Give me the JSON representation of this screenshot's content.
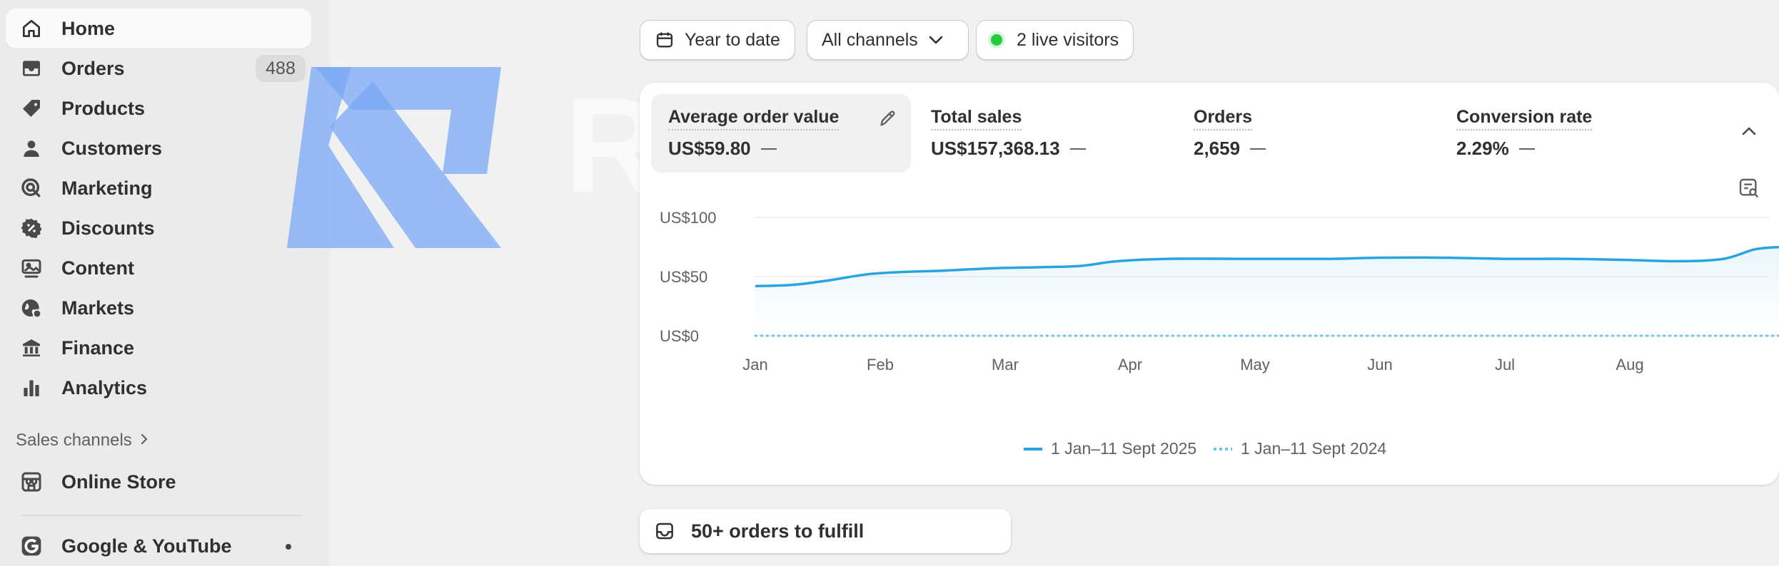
{
  "sidebar": {
    "items": [
      {
        "label": "Home",
        "icon": "home-icon",
        "active": true
      },
      {
        "label": "Orders",
        "icon": "inbox-icon",
        "badge": "488"
      },
      {
        "label": "Products",
        "icon": "tag-icon"
      },
      {
        "label": "Customers",
        "icon": "person-icon"
      },
      {
        "label": "Marketing",
        "icon": "target-icon"
      },
      {
        "label": "Discounts",
        "icon": "discount-icon"
      },
      {
        "label": "Content",
        "icon": "image-icon"
      },
      {
        "label": "Markets",
        "icon": "globe-icon"
      },
      {
        "label": "Finance",
        "icon": "bank-icon"
      },
      {
        "label": "Analytics",
        "icon": "bar-chart-icon"
      }
    ],
    "sales_channels_label": "Sales channels",
    "channels": [
      {
        "label": "Online Store",
        "icon": "store-icon"
      },
      {
        "label": "Google & YouTube",
        "icon": "google-icon"
      }
    ]
  },
  "filters": {
    "date": "Year to date",
    "channels": "All channels",
    "live": "2 live visitors"
  },
  "metrics": [
    {
      "label": "Average order value",
      "value": "US$59.80"
    },
    {
      "label": "Total sales",
      "value": "US$157,368.13"
    },
    {
      "label": "Orders",
      "value": "2,659"
    },
    {
      "label": "Conversion rate",
      "value": "2.29%"
    }
  ],
  "chart_data": {
    "type": "line",
    "y_ticks": [
      "US$0",
      "US$50",
      "US$100"
    ],
    "ylim": [
      0,
      100
    ],
    "x_ticks": [
      "Jan",
      "Feb",
      "Mar",
      "Apr",
      "May",
      "Jun",
      "Jul",
      "Aug"
    ],
    "x_range": [
      0,
      8.2
    ],
    "series": [
      {
        "name": "1 Jan–11 Sept 2025",
        "color": "#2aa4e0",
        "style": "solid",
        "points": [
          [
            0,
            42
          ],
          [
            0.3,
            43
          ],
          [
            0.6,
            47
          ],
          [
            0.9,
            52
          ],
          [
            1.2,
            54
          ],
          [
            1.5,
            55
          ],
          [
            1.9,
            57
          ],
          [
            2.3,
            58
          ],
          [
            2.6,
            59
          ],
          [
            2.9,
            63
          ],
          [
            3.3,
            65
          ],
          [
            4,
            65
          ],
          [
            4.6,
            65
          ],
          [
            5,
            66
          ],
          [
            5.5,
            66
          ],
          [
            6,
            65
          ],
          [
            6.5,
            65
          ],
          [
            7,
            64
          ],
          [
            7.4,
            63
          ],
          [
            7.75,
            65
          ],
          [
            8,
            73
          ],
          [
            8.2,
            75
          ]
        ]
      },
      {
        "name": "1 Jan–11 Sept 2024",
        "color": "#6fc3ea",
        "style": "dotted",
        "points": [
          [
            0,
            0
          ],
          [
            8.2,
            0
          ]
        ]
      }
    ]
  },
  "todo": {
    "label": "50+ orders to fulfill"
  }
}
